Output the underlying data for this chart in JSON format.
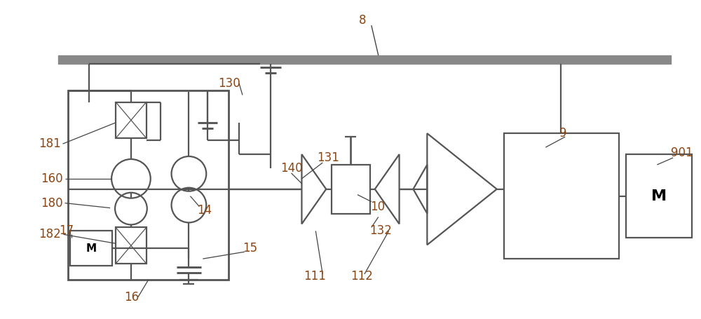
{
  "bg_color": "#ffffff",
  "line_color": "#555555",
  "label_color": "#8B4513",
  "lw": 1.6,
  "fig_w": 10.0,
  "fig_h": 4.55
}
